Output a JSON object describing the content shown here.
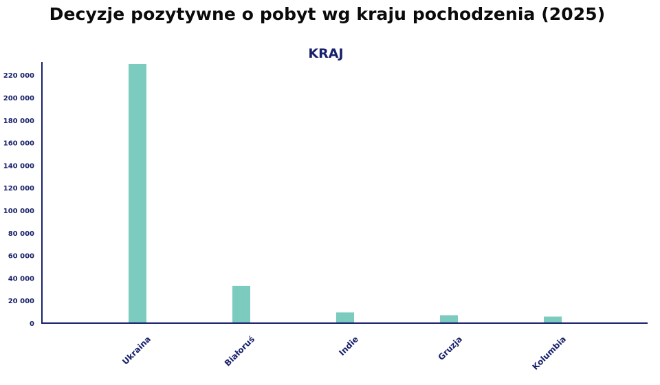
{
  "title": "Decyzje pozytywne o pobyt wg kraju pochodzenia (2025)",
  "colors": {
    "bar": "#7bcbbf",
    "axis": "#17206a",
    "title": "#0b0b0b"
  },
  "chart_data": {
    "type": "bar",
    "subtitle": "KRAJ",
    "categories": [
      "Ukraina",
      "Białoruś",
      "Indie",
      "Gruzja",
      "Kolumbia"
    ],
    "values": [
      231000,
      33000,
      9500,
      7000,
      5800
    ],
    "ylim": [
      0,
      230000
    ],
    "yticks": [
      0,
      20000,
      40000,
      60000,
      80000,
      100000,
      120000,
      140000,
      160000,
      180000,
      200000,
      220000
    ],
    "ytick_labels": [
      "0",
      "20 000",
      "40 000",
      "60 000",
      "80 000",
      "100 000",
      "120 000",
      "140 000",
      "160 000",
      "180 000",
      "200 000",
      "220 000"
    ],
    "xlabel": "",
    "ylabel": "",
    "grid": false,
    "legend": "none"
  }
}
